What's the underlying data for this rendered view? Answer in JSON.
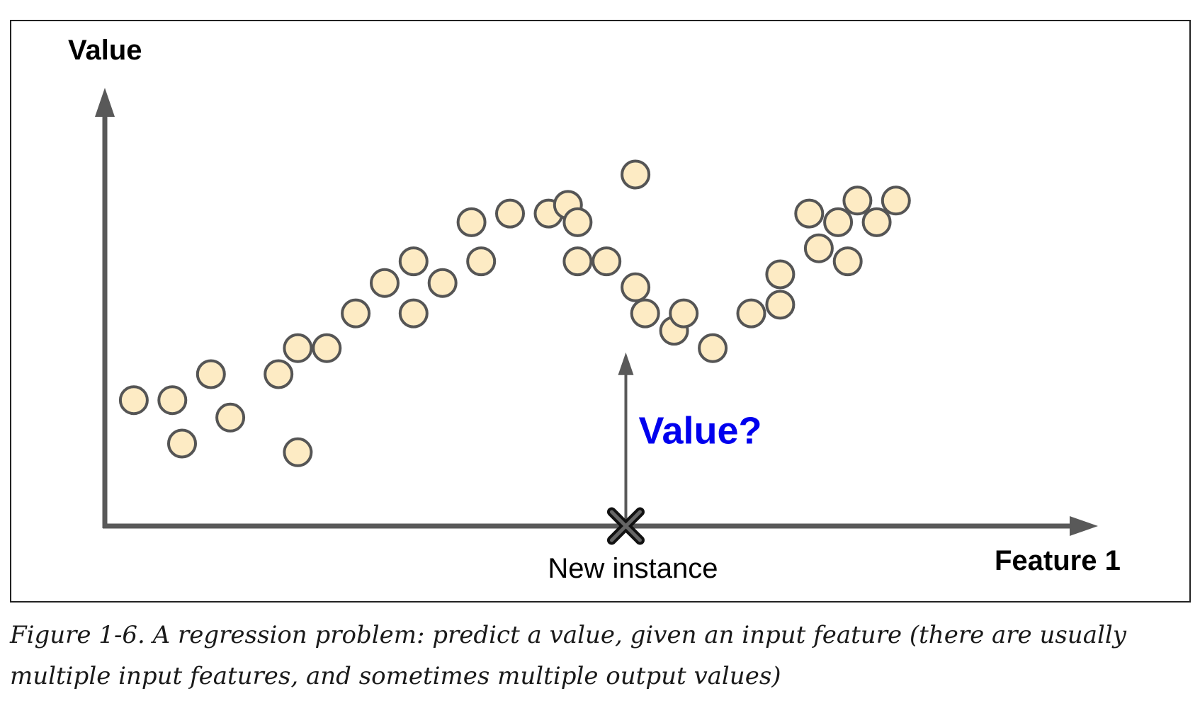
{
  "caption": "Figure 1-6. A regression problem: predict a value, given an input feature (there are usually multiple input features, and sometimes multiple output values)",
  "chart_data": {
    "type": "scatter",
    "title": "",
    "xlabel": "Feature 1",
    "ylabel": "Value",
    "xlim": [
      0,
      100
    ],
    "ylim": [
      0,
      100
    ],
    "grid": false,
    "points": [
      {
        "x": 3,
        "y": 29
      },
      {
        "x": 7,
        "y": 29
      },
      {
        "x": 8,
        "y": 19
      },
      {
        "x": 11,
        "y": 35
      },
      {
        "x": 13,
        "y": 25
      },
      {
        "x": 18,
        "y": 35
      },
      {
        "x": 20,
        "y": 41
      },
      {
        "x": 20,
        "y": 17
      },
      {
        "x": 23,
        "y": 41
      },
      {
        "x": 26,
        "y": 49
      },
      {
        "x": 29,
        "y": 56
      },
      {
        "x": 32,
        "y": 61
      },
      {
        "x": 32,
        "y": 49
      },
      {
        "x": 35,
        "y": 56
      },
      {
        "x": 38,
        "y": 70
      },
      {
        "x": 39,
        "y": 61
      },
      {
        "x": 42,
        "y": 72
      },
      {
        "x": 46,
        "y": 72
      },
      {
        "x": 48,
        "y": 74
      },
      {
        "x": 49,
        "y": 70
      },
      {
        "x": 49,
        "y": 61
      },
      {
        "x": 52,
        "y": 61
      },
      {
        "x": 55,
        "y": 81
      },
      {
        "x": 55,
        "y": 55
      },
      {
        "x": 56,
        "y": 49
      },
      {
        "x": 59,
        "y": 45
      },
      {
        "x": 60,
        "y": 49
      },
      {
        "x": 63,
        "y": 41
      },
      {
        "x": 67,
        "y": 49
      },
      {
        "x": 70,
        "y": 51
      },
      {
        "x": 70,
        "y": 58
      },
      {
        "x": 73,
        "y": 72
      },
      {
        "x": 74,
        "y": 64
      },
      {
        "x": 76,
        "y": 70
      },
      {
        "x": 77,
        "y": 61
      },
      {
        "x": 78,
        "y": 75
      },
      {
        "x": 80,
        "y": 70
      },
      {
        "x": 82,
        "y": 75
      }
    ],
    "new_instance": {
      "x": 54,
      "label": "New instance"
    },
    "prediction_label": "Value?",
    "prediction_arrow_top": 40,
    "point_fill": "#fdebc4",
    "point_stroke": "#555555",
    "axis_color": "#595959",
    "query_color": "#0000ee"
  }
}
